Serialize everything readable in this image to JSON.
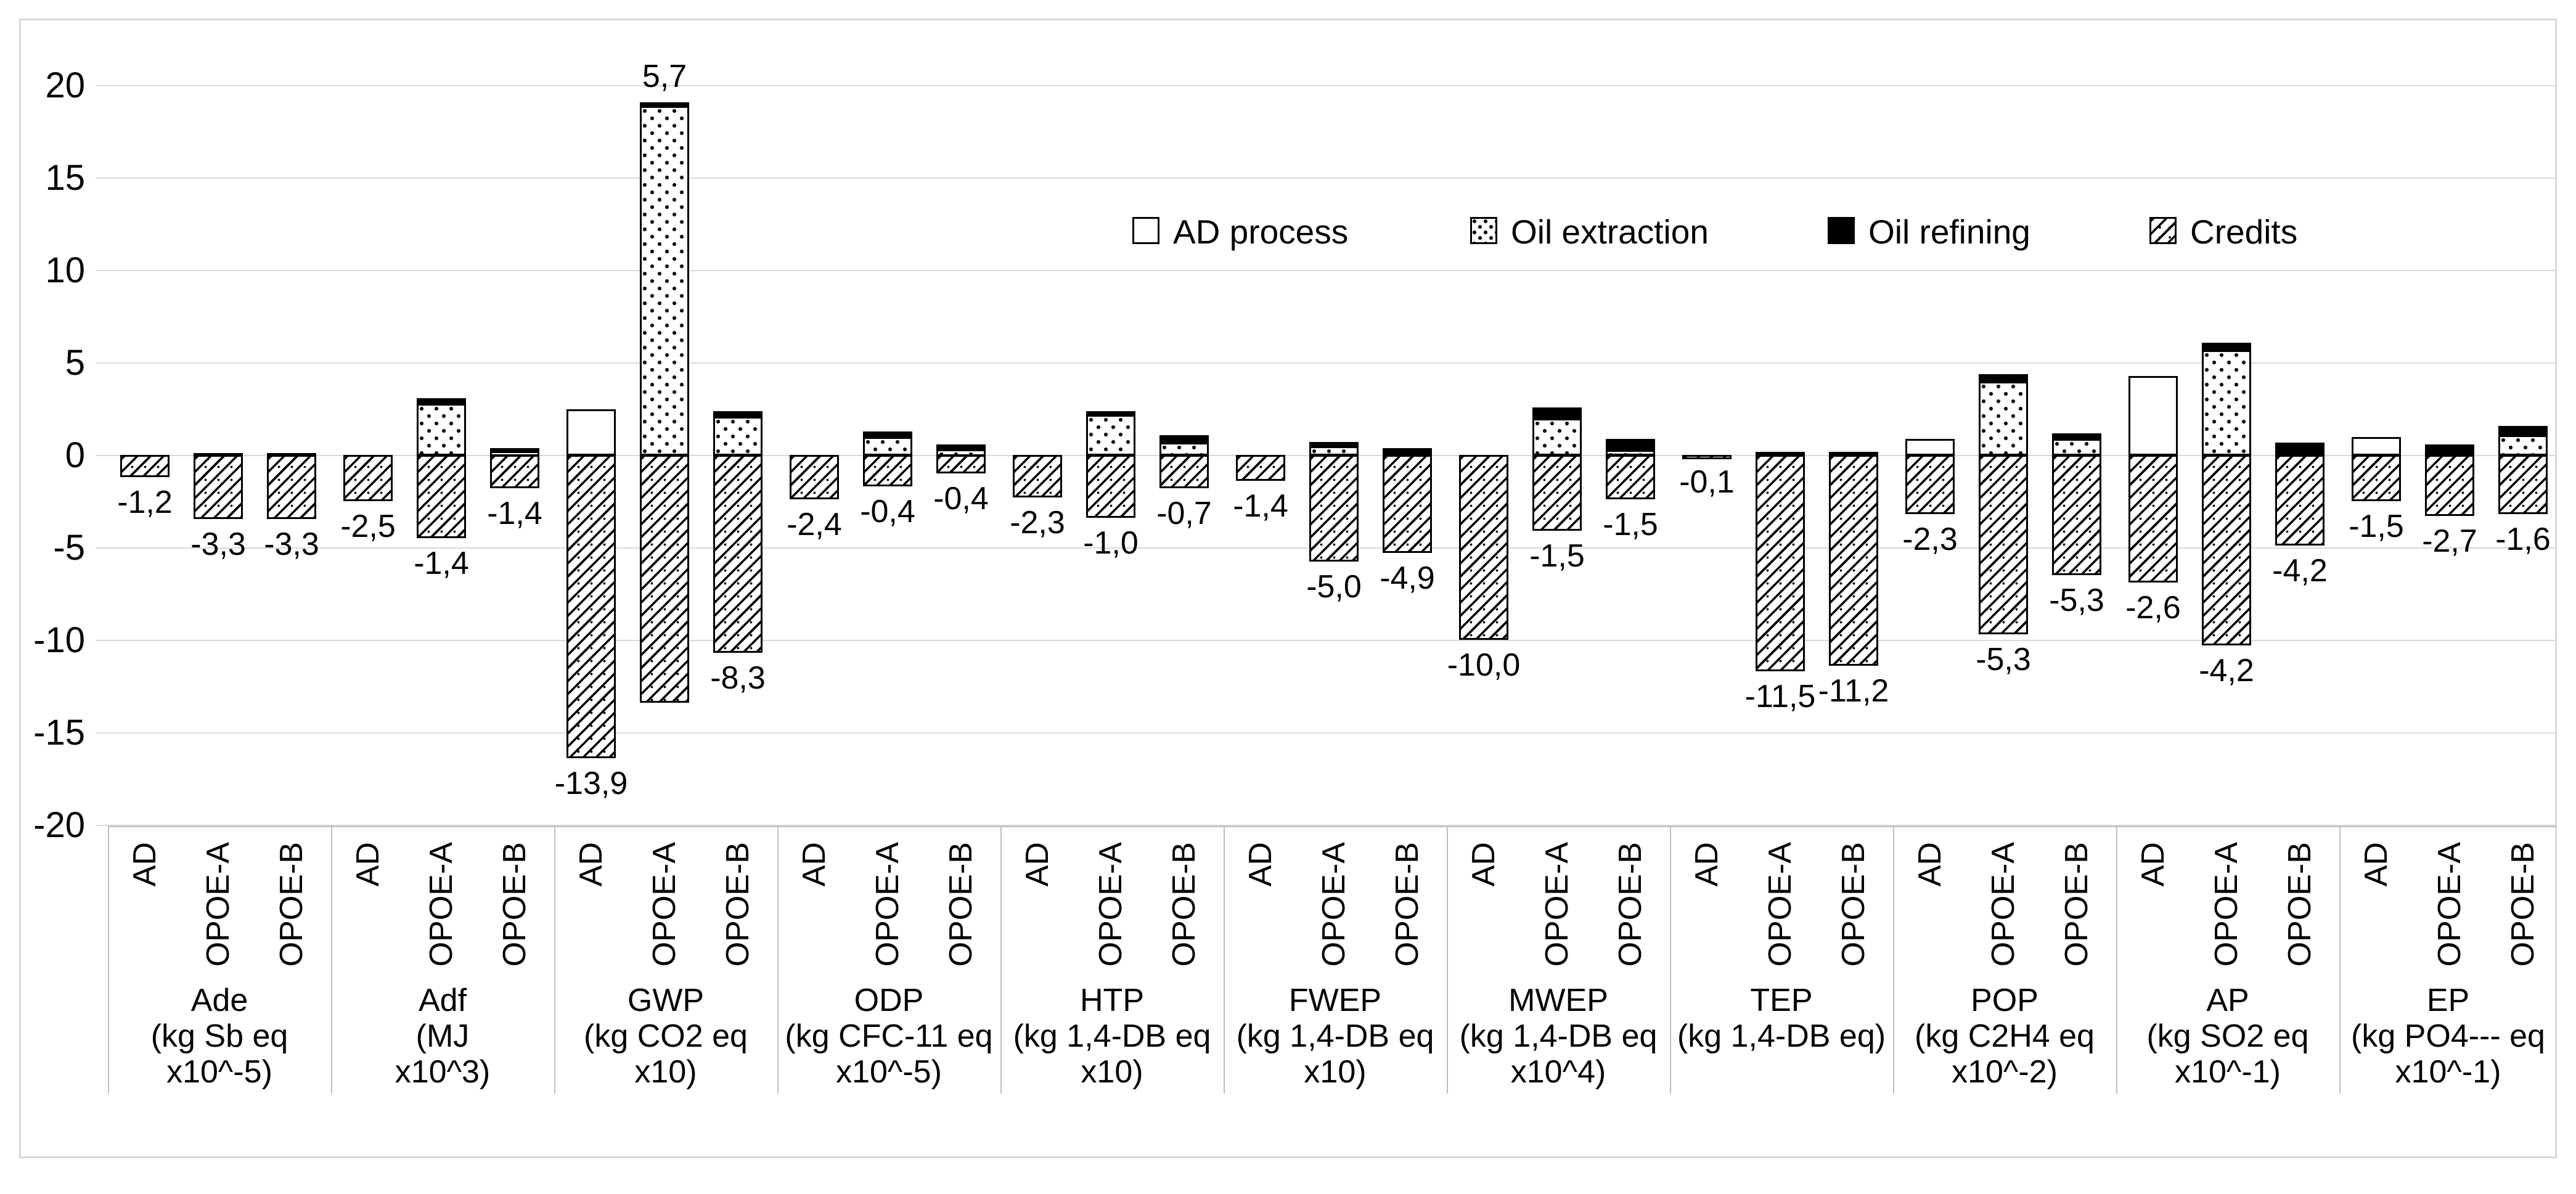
{
  "chart_data": {
    "type": "bar",
    "stacked": true,
    "grid": true,
    "legend_position": "inside-top-right",
    "decimal_separator": ",",
    "y_axis": {
      "min": -20,
      "max": 20,
      "step": 5,
      "tick_labels": [
        "20",
        "15",
        "10",
        "5",
        "0",
        "-5",
        "-10",
        "-15",
        "-20"
      ]
    },
    "legend": [
      {
        "key": "ad_process",
        "label": "AD process"
      },
      {
        "key": "oil_extraction",
        "label": "Oil extraction"
      },
      {
        "key": "oil_refining",
        "label": "Oil refining"
      },
      {
        "key": "credits",
        "label": "Credits"
      }
    ],
    "stack_order_positive": [
      "ad_process",
      "oil_extraction",
      "oil_refining"
    ],
    "scenarios": [
      "AD",
      "OPOE-A",
      "OPOE-B"
    ],
    "groups": [
      {
        "label": "Ade",
        "unit": "(kg Sb eq x10^-5)",
        "label_lines": [
          "Ade",
          "(kg Sb eq",
          "x10^-5)"
        ],
        "bars": [
          {
            "scenario": "AD",
            "net_label": "-1,2",
            "segments": {
              "ad_process": 0,
              "oil_extraction": 0,
              "oil_refining": 0,
              "credits": -1.2
            }
          },
          {
            "scenario": "OPOE-A",
            "net_label": "-3,3",
            "segments": {
              "ad_process": 0,
              "oil_extraction": 0,
              "oil_refining": 0.15,
              "credits": -3.45
            }
          },
          {
            "scenario": "OPOE-B",
            "net_label": "-3,3",
            "segments": {
              "ad_process": 0,
              "oil_extraction": 0,
              "oil_refining": 0.15,
              "credits": -3.45
            }
          }
        ]
      },
      {
        "label": "Adf",
        "unit": "(MJ x10^3)",
        "label_lines": [
          "Adf",
          "(MJ",
          "x10^3)"
        ],
        "bars": [
          {
            "scenario": "AD",
            "net_label": "-2,5",
            "segments": {
              "ad_process": 0,
              "oil_extraction": 0,
              "oil_refining": 0,
              "credits": -2.5
            }
          },
          {
            "scenario": "OPOE-A",
            "net_label": "-1,4",
            "segments": {
              "ad_process": 0,
              "oil_extraction": 2.8,
              "oil_refining": 0.3,
              "credits": -4.5
            }
          },
          {
            "scenario": "OPOE-B",
            "net_label": "-1,4",
            "segments": {
              "ad_process": 0,
              "oil_extraction": 0.25,
              "oil_refining": 0.15,
              "credits": -1.8
            }
          }
        ]
      },
      {
        "label": "GWP",
        "unit": "(kg CO2 eq x10)",
        "label_lines": [
          "GWP",
          "(kg CO2 eq",
          "x10)"
        ],
        "bars": [
          {
            "scenario": "AD",
            "net_label": "-13,9",
            "segments": {
              "ad_process": 2.5,
              "oil_extraction": 0,
              "oil_refining": 0,
              "credits": -16.4
            }
          },
          {
            "scenario": "OPOE-A",
            "net_label": "5,7",
            "segments": {
              "ad_process": 0,
              "oil_extraction": 18.9,
              "oil_refining": 0.2,
              "credits": -13.4
            }
          },
          {
            "scenario": "OPOE-B",
            "net_label": "-8,3",
            "segments": {
              "ad_process": 0,
              "oil_extraction": 2.1,
              "oil_refining": 0.3,
              "credits": -10.7
            }
          }
        ]
      },
      {
        "label": "ODP",
        "unit": "(kg CFC-11 eq x10^-5)",
        "label_lines": [
          "ODP",
          "(kg CFC-11 eq",
          "x10^-5)"
        ],
        "bars": [
          {
            "scenario": "AD",
            "net_label": "-2,4",
            "segments": {
              "ad_process": 0,
              "oil_extraction": 0,
              "oil_refining": 0,
              "credits": -2.4
            }
          },
          {
            "scenario": "OPOE-A",
            "net_label": "-0,4",
            "segments": {
              "ad_process": 0,
              "oil_extraction": 1.0,
              "oil_refining": 0.3,
              "credits": -1.7
            }
          },
          {
            "scenario": "OPOE-B",
            "net_label": "-0,4",
            "segments": {
              "ad_process": 0,
              "oil_extraction": 0.35,
              "oil_refining": 0.25,
              "credits": -1.0
            }
          }
        ]
      },
      {
        "label": "HTP",
        "unit": "(kg 1,4-DB eq x10)",
        "label_lines": [
          "HTP",
          "(kg 1,4-DB eq",
          "x10)"
        ],
        "bars": [
          {
            "scenario": "AD",
            "net_label": "-2,3",
            "segments": {
              "ad_process": 0,
              "oil_extraction": 0,
              "oil_refining": 0,
              "credits": -2.3
            }
          },
          {
            "scenario": "OPOE-A",
            "net_label": "-1,0",
            "segments": {
              "ad_process": 0,
              "oil_extraction": 2.2,
              "oil_refining": 0.2,
              "credits": -3.4
            }
          },
          {
            "scenario": "OPOE-B",
            "net_label": "-0,7",
            "segments": {
              "ad_process": 0,
              "oil_extraction": 0.7,
              "oil_refining": 0.4,
              "credits": -1.8
            }
          }
        ]
      },
      {
        "label": "FWEP",
        "unit": "(kg 1,4-DB eq x10)",
        "label_lines": [
          "FWEP",
          "(kg 1,4-DB eq",
          "x10)"
        ],
        "bars": [
          {
            "scenario": "AD",
            "net_label": "-1,4",
            "segments": {
              "ad_process": 0,
              "oil_extraction": 0,
              "oil_refining": 0,
              "credits": -1.4
            }
          },
          {
            "scenario": "OPOE-A",
            "net_label": "-5,0",
            "segments": {
              "ad_process": 0,
              "oil_extraction": 0.5,
              "oil_refining": 0.25,
              "credits": -5.75
            }
          },
          {
            "scenario": "OPOE-B",
            "net_label": "-4,9",
            "segments": {
              "ad_process": 0,
              "oil_extraction": 0.1,
              "oil_refining": 0.3,
              "credits": -5.3
            }
          }
        ]
      },
      {
        "label": "MWEP",
        "unit": "(kg 1,4-DB eq x10^4)",
        "label_lines": [
          "MWEP",
          "(kg 1,4-DB eq",
          "x10^4)"
        ],
        "bars": [
          {
            "scenario": "AD",
            "net_label": "-10,0",
            "segments": {
              "ad_process": 0,
              "oil_extraction": 0,
              "oil_refining": 0,
              "credits": -10.0
            }
          },
          {
            "scenario": "OPOE-A",
            "net_label": "-1,5",
            "segments": {
              "ad_process": 0,
              "oil_extraction": 2.0,
              "oil_refining": 0.6,
              "credits": -4.1
            }
          },
          {
            "scenario": "OPOE-B",
            "net_label": "-1,5",
            "segments": {
              "ad_process": 0,
              "oil_extraction": 0.3,
              "oil_refining": 0.6,
              "credits": -2.4
            }
          }
        ]
      },
      {
        "label": "TEP",
        "unit": "(kg 1,4-DB eq)",
        "label_lines": [
          "TEP",
          "(kg 1,4-DB eq)"
        ],
        "bars": [
          {
            "scenario": "AD",
            "net_label": "-0,1",
            "segments": {
              "ad_process": 0,
              "oil_extraction": 0,
              "oil_refining": 0,
              "credits": -0.1
            }
          },
          {
            "scenario": "OPOE-A",
            "net_label": "-11,5",
            "segments": {
              "ad_process": 0,
              "oil_extraction": 0,
              "oil_refining": 0.2,
              "credits": -11.7
            }
          },
          {
            "scenario": "OPOE-B",
            "net_label": "-11,2",
            "segments": {
              "ad_process": 0,
              "oil_extraction": 0,
              "oil_refining": 0.2,
              "credits": -11.4
            }
          }
        ]
      },
      {
        "label": "POP",
        "unit": "(kg C2H4 eq x10^-2)",
        "label_lines": [
          "POP",
          "(kg C2H4 eq",
          "x10^-2)"
        ],
        "bars": [
          {
            "scenario": "AD",
            "net_label": "-2,3",
            "segments": {
              "ad_process": 0.9,
              "oil_extraction": 0,
              "oil_refining": 0,
              "credits": -3.2
            }
          },
          {
            "scenario": "OPOE-A",
            "net_label": "-5,3",
            "segments": {
              "ad_process": 0,
              "oil_extraction": 4.0,
              "oil_refining": 0.4,
              "credits": -9.7
            }
          },
          {
            "scenario": "OPOE-B",
            "net_label": "-5,3",
            "segments": {
              "ad_process": 0,
              "oil_extraction": 0.9,
              "oil_refining": 0.3,
              "credits": -6.5
            }
          }
        ]
      },
      {
        "label": "AP",
        "unit": "(kg SO2 eq x10^-1)",
        "label_lines": [
          "AP",
          "(kg SO2 eq",
          "x10^-1)"
        ],
        "bars": [
          {
            "scenario": "AD",
            "net_label": "-2,6",
            "segments": {
              "ad_process": 4.3,
              "oil_extraction": 0,
              "oil_refining": 0,
              "credits": -6.9
            }
          },
          {
            "scenario": "OPOE-A",
            "net_label": "-4,2",
            "segments": {
              "ad_process": 0,
              "oil_extraction": 5.7,
              "oil_refining": 0.4,
              "credits": -10.3
            }
          },
          {
            "scenario": "OPOE-B",
            "net_label": "-4,2",
            "segments": {
              "ad_process": 0,
              "oil_extraction": 0.1,
              "oil_refining": 0.6,
              "credits": -4.9
            }
          }
        ]
      },
      {
        "label": "EP",
        "unit": "(kg PO4--- eq x10^-1)",
        "label_lines": [
          "EP",
          "(kg PO4--- eq",
          "x10^-1)"
        ],
        "bars": [
          {
            "scenario": "AD",
            "net_label": "-1,5",
            "segments": {
              "ad_process": 1.0,
              "oil_extraction": 0,
              "oil_refining": 0,
              "credits": -2.5
            }
          },
          {
            "scenario": "OPOE-A",
            "net_label": "-2,7",
            "segments": {
              "ad_process": 0,
              "oil_extraction": 0.1,
              "oil_refining": 0.5,
              "credits": -3.3
            }
          },
          {
            "scenario": "OPOE-B",
            "net_label": "-1,6",
            "segments": {
              "ad_process": 0,
              "oil_extraction": 1.1,
              "oil_refining": 0.5,
              "credits": -3.2
            }
          }
        ]
      }
    ],
    "colors": {
      "foreground": "#000000",
      "background": "#ffffff",
      "gridline": "#d9d9d9",
      "separator": "#bfbfbf"
    }
  }
}
